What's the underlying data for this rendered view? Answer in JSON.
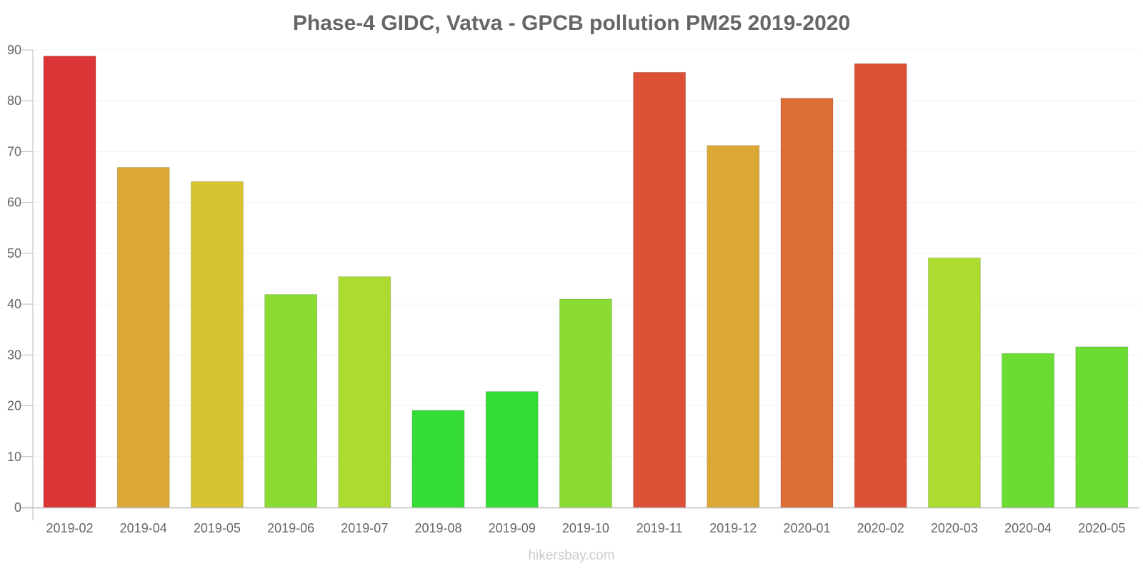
{
  "chart_data": {
    "type": "bar",
    "title": "Phase-4 GIDC, Vatva - GPCB pollution PM25 2019-2020",
    "xlabel": "",
    "ylabel": "",
    "ylim": [
      0,
      90
    ],
    "yticks": [
      0,
      10,
      20,
      30,
      40,
      50,
      60,
      70,
      80,
      90
    ],
    "grid": true,
    "categories": [
      "2019-02",
      "2019-04",
      "2019-05",
      "2019-06",
      "2019-07",
      "2019-08",
      "2019-09",
      "2019-10",
      "2019-11",
      "2019-12",
      "2020-01",
      "2020-02",
      "2020-03",
      "2020-04",
      "2020-05"
    ],
    "values": [
      88.8,
      66.9,
      64.1,
      41.9,
      45.4,
      19.1,
      22.8,
      41.0,
      85.6,
      71.2,
      80.5,
      87.3,
      49.1,
      30.3,
      31.6
    ],
    "colors": [
      "#dc3535",
      "#dca835",
      "#d6c431",
      "#8adc35",
      "#addc31",
      "#35dc35",
      "#35dc35",
      "#8adc35",
      "#dc5035",
      "#dca835",
      "#dc6d35",
      "#dc5035",
      "#addc31",
      "#6bdc31",
      "#6bdc31"
    ]
  },
  "watermark": "hikersbay.com"
}
